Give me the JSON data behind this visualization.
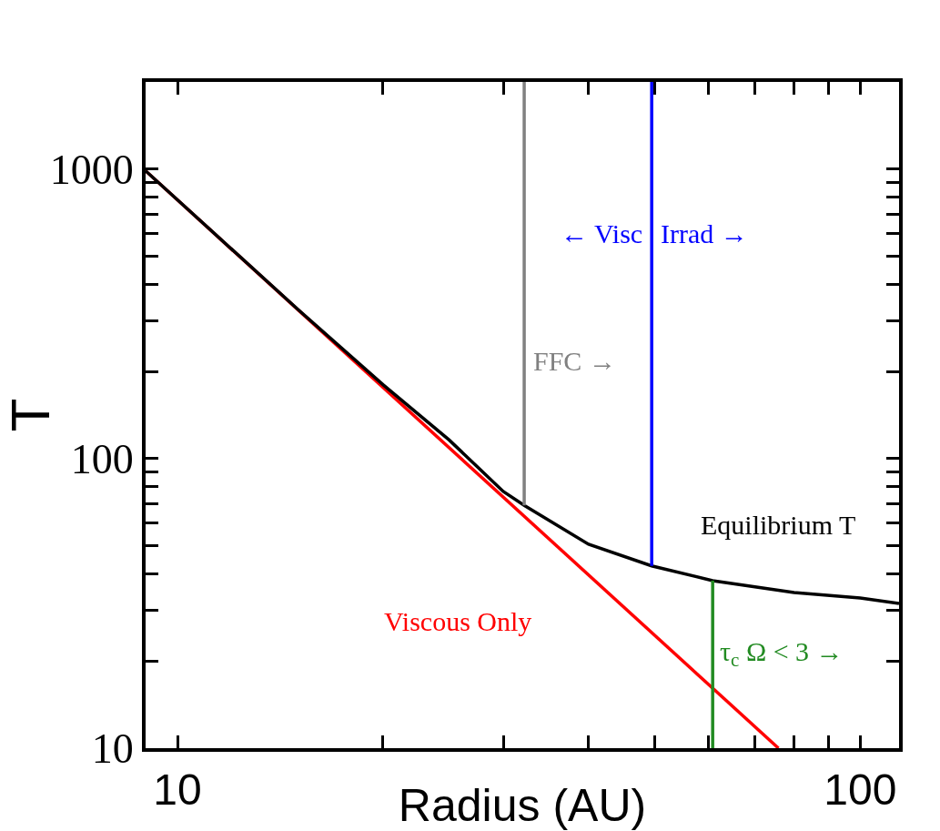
{
  "chart_data": {
    "type": "line",
    "xlabel": "Radius (AU)",
    "ylabel": "T",
    "log": "xy",
    "grid": false,
    "marker": "none",
    "line_style": "solid",
    "xlim": [
      8.98,
      114
    ],
    "ylim": [
      10,
      2000
    ],
    "xticks": [
      10,
      {
        "value": 20,
        "label": null
      },
      {
        "value": 30,
        "label": null
      },
      {
        "value": 40,
        "label": null
      },
      {
        "value": 50,
        "label": null
      },
      {
        "value": 60,
        "label": null
      },
      {
        "value": 70,
        "label": null
      },
      {
        "value": 80,
        "label": null
      },
      {
        "value": 90,
        "label": null
      },
      100
    ],
    "yticks": [
      10,
      {
        "value": 20,
        "label": null
      },
      {
        "value": 30,
        "label": null
      },
      {
        "value": 40,
        "label": null
      },
      {
        "value": 50,
        "label": null
      },
      {
        "value": 60,
        "label": null
      },
      {
        "value": 70,
        "label": null
      },
      {
        "value": 80,
        "label": null
      },
      {
        "value": 90,
        "label": null
      },
      100,
      {
        "value": 200,
        "label": null
      },
      {
        "value": 300,
        "label": null
      },
      {
        "value": 400,
        "label": null
      },
      {
        "value": 500,
        "label": null
      },
      {
        "value": 600,
        "label": null
      },
      {
        "value": 700,
        "label": null
      },
      {
        "value": 800,
        "label": null
      },
      {
        "value": 900,
        "label": null
      },
      1000
    ],
    "series": [
      {
        "color": "#ff0000",
        "x": [
          8.98,
          75.9
        ],
        "values": [
          986,
          10
        ]
      },
      {
        "color": "#000000",
        "x": [
          8.98,
          15,
          20,
          25,
          30,
          32.2,
          40,
          49.5,
          60.8,
          80,
          100,
          114
        ],
        "values": [
          986,
          328,
          180,
          116,
          77,
          69,
          50.6,
          42.6,
          37.9,
          34.5,
          33,
          31.6
        ]
      },
      {
        "color": "#808080",
        "x": [
          32.2,
          32.2
        ],
        "values": [
          69,
          2000
        ]
      },
      {
        "color": "#0000ff",
        "x": [
          49.5,
          49.5
        ],
        "values": [
          42.6,
          2000
        ]
      },
      {
        "color": "#228b22",
        "x": [
          60.8,
          60.8
        ],
        "values": [
          10,
          37.9
        ]
      }
    ],
    "annotations": [
      {
        "text": "← Visc",
        "x": 49.5,
        "y": 598
      },
      {
        "text": "Irrad →",
        "x": 49.5,
        "y": 598
      },
      {
        "text": "FFC →",
        "x": 32.2,
        "y": 217
      },
      "Equilibrium T",
      "Viscous Only",
      {
        "text": "τ$_{c}$ Ω < 3 →",
        "x": 60.8,
        "y": 21.2
      }
    ]
  }
}
